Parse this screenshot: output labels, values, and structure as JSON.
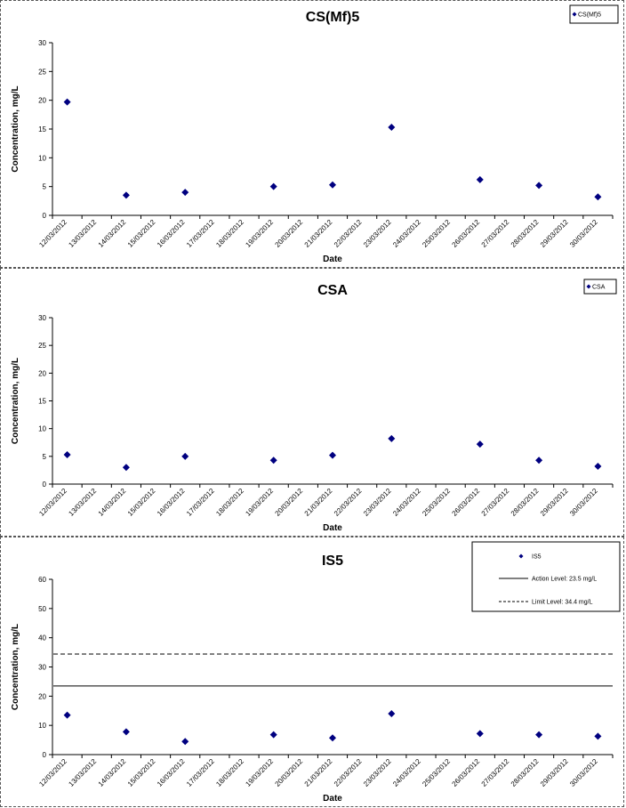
{
  "colors": {
    "marker": "#000080",
    "line": "#000000",
    "border": "#555555"
  },
  "chart_data": [
    {
      "type": "scatter",
      "title": "CS(Mf)5",
      "xlabel": "Date",
      "ylabel": "Concentration, mg/L",
      "ylim": [
        0,
        30
      ],
      "yticks": [
        "0",
        "5",
        "10",
        "15",
        "20",
        "25",
        "30"
      ],
      "x_tick_labels": [
        "12/03/2012",
        "13/03/2012",
        "14/03/2012",
        "15/03/2012",
        "16/03/2012",
        "17/03/2012",
        "18/03/2012",
        "19/03/2012",
        "20/03/2012",
        "21/03/2012",
        "22/03/2012",
        "23/03/2012",
        "24/03/2012",
        "25/03/2012",
        "26/03/2012",
        "27/03/2012",
        "28/03/2012",
        "29/03/2012",
        "30/03/2012"
      ],
      "grid": false,
      "legend": {
        "placement": "top-right",
        "entries": [
          "CS(Mf)5"
        ]
      },
      "series": [
        {
          "name": "CS(Mf)5",
          "kind": "marker",
          "points": [
            {
              "x": "12/03/2012",
              "y": 19.7
            },
            {
              "x": "14/03/2012",
              "y": 3.5
            },
            {
              "x": "16/03/2012",
              "y": 4.0
            },
            {
              "x": "19/03/2012",
              "y": 5.0
            },
            {
              "x": "21/03/2012",
              "y": 5.3
            },
            {
              "x": "23/03/2012",
              "y": 15.3
            },
            {
              "x": "26/03/2012",
              "y": 6.2
            },
            {
              "x": "28/03/2012",
              "y": 5.2
            },
            {
              "x": "30/03/2012",
              "y": 3.2
            }
          ]
        }
      ]
    },
    {
      "type": "scatter",
      "title": "CSA",
      "xlabel": "Date",
      "ylabel": "Concentration, mg/L",
      "ylim": [
        0,
        30
      ],
      "yticks": [
        "0",
        "5",
        "10",
        "15",
        "20",
        "25",
        "30"
      ],
      "x_tick_labels": [
        "12/03/2012",
        "13/03/2012",
        "14/03/2012",
        "15/03/2012",
        "16/03/2012",
        "17/03/2012",
        "18/03/2012",
        "19/03/2012",
        "20/03/2012",
        "21/03/2012",
        "22/03/2012",
        "23/03/2012",
        "24/03/2012",
        "25/03/2012",
        "26/03/2012",
        "27/03/2012",
        "28/03/2012",
        "29/03/2012",
        "30/03/2012"
      ],
      "grid": false,
      "legend": {
        "placement": "top-right",
        "entries": [
          "CSA"
        ]
      },
      "series": [
        {
          "name": "CSA",
          "kind": "marker",
          "points": [
            {
              "x": "12/03/2012",
              "y": 5.3
            },
            {
              "x": "14/03/2012",
              "y": 3.0
            },
            {
              "x": "16/03/2012",
              "y": 5.0
            },
            {
              "x": "19/03/2012",
              "y": 4.3
            },
            {
              "x": "21/03/2012",
              "y": 5.2
            },
            {
              "x": "23/03/2012",
              "y": 8.2
            },
            {
              "x": "26/03/2012",
              "y": 7.2
            },
            {
              "x": "28/03/2012",
              "y": 4.3
            },
            {
              "x": "30/03/2012",
              "y": 3.2
            }
          ]
        }
      ]
    },
    {
      "type": "scatter",
      "title": "IS5",
      "xlabel": "Date",
      "ylabel": "Concentration, mg/L",
      "ylim": [
        0,
        60
      ],
      "yticks": [
        "0",
        "10",
        "20",
        "30",
        "40",
        "50",
        "60"
      ],
      "x_tick_labels": [
        "12/03/2012",
        "13/03/2012",
        "14/03/2012",
        "15/03/2012",
        "16/03/2012",
        "17/03/2012",
        "18/03/2012",
        "19/03/2012",
        "20/03/2012",
        "21/03/2012",
        "22/03/2012",
        "23/03/2012",
        "24/03/2012",
        "25/03/2012",
        "26/03/2012",
        "27/03/2012",
        "28/03/2012",
        "29/03/2012",
        "30/03/2012"
      ],
      "grid": false,
      "legend": {
        "placement": "top-right",
        "entries": [
          "IS5",
          "Action Level: 23.5 mg/L",
          "Limit Level: 34.4 mg/L"
        ]
      },
      "series": [
        {
          "name": "IS5",
          "kind": "marker",
          "points": [
            {
              "x": "12/03/2012",
              "y": 13.5
            },
            {
              "x": "14/03/2012",
              "y": 7.8
            },
            {
              "x": "16/03/2012",
              "y": 4.5
            },
            {
              "x": "19/03/2012",
              "y": 6.8
            },
            {
              "x": "21/03/2012",
              "y": 5.7
            },
            {
              "x": "23/03/2012",
              "y": 14.0
            },
            {
              "x": "26/03/2012",
              "y": 7.2
            },
            {
              "x": "28/03/2012",
              "y": 6.8
            },
            {
              "x": "30/03/2012",
              "y": 6.3
            }
          ]
        },
        {
          "name": "Action Level: 23.5 mg/L",
          "kind": "hline",
          "style": "solid",
          "y": 23.5
        },
        {
          "name": "Limit Level: 34.4 mg/L",
          "kind": "hline",
          "style": "dashed",
          "y": 34.4
        }
      ]
    }
  ]
}
